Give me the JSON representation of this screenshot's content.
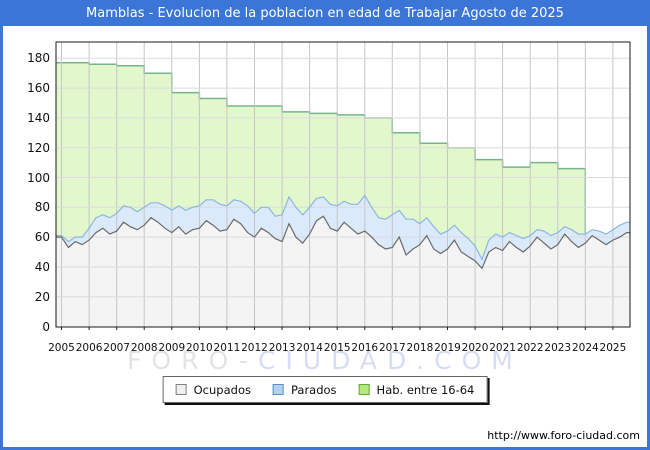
{
  "title": "Mamblas - Evolucion de la poblacion en edad de Trabajar Agosto de 2025",
  "footer_url": "http://www.foro-ciudad.com",
  "watermark": {
    "part1": "FORO-",
    "part2": "CIUDAD.COM"
  },
  "colors": {
    "frame": "#3b76d6",
    "title_bar": "#3b76d6",
    "title_text": "#ffffff",
    "plot_background": "#ffffff",
    "plot_border": "#1a1a1a",
    "grid_vertical": "#c5c5ca",
    "grid_horizontal": "#dbdbde",
    "ocupados_line": "#6a6a6a",
    "ocupados_fill": "#f4f4f4",
    "parados_line": "#8cb6e2",
    "parados_fill": "#daeafa",
    "hab_line": "#76b48a",
    "hab_fill": "#e2f8cc"
  },
  "legend": {
    "items": [
      {
        "label": "Ocupados",
        "fill": "#f0f0f0",
        "border": "#808080"
      },
      {
        "label": "Parados",
        "fill": "#b4d2ee",
        "border": "#5b8fc9"
      },
      {
        "label": "Hab. entre 16-64",
        "fill": "#b3e87d",
        "border": "#62a838"
      }
    ]
  },
  "chart_data": {
    "type": "area",
    "title": "Mamblas - Evolucion de la poblacion en edad de Trabajar Agosto de 2025",
    "xlabel": "",
    "ylabel": "",
    "x_tick_labels": [
      2005,
      2006,
      2007,
      2008,
      2009,
      2010,
      2011,
      2012,
      2013,
      2014,
      2015,
      2016,
      2017,
      2018,
      2019,
      2020,
      2021,
      2022,
      2023,
      2024,
      2025
    ],
    "yticks": [
      0,
      20,
      40,
      60,
      80,
      100,
      120,
      140,
      160,
      180
    ],
    "ylim": [
      0,
      191
    ],
    "grid": true,
    "legend_position": "bottom",
    "note": "Monthly series approximated at quarterly resolution; Parados is stacked above Ocupados; Hab. entre 16-64 is an annual step series. Big drop of Hab. entre 16-64 occurs at 2024.",
    "series": [
      {
        "name": "Ocupados",
        "render": "area",
        "start": 2005,
        "step": 0.25,
        "values": [
          60,
          53,
          57,
          55,
          58,
          63,
          66,
          62,
          64,
          70,
          67,
          65,
          68,
          73,
          70,
          66,
          63,
          67,
          62,
          65,
          66,
          71,
          68,
          64,
          65,
          72,
          69,
          63,
          60,
          66,
          63,
          59,
          57,
          69,
          60,
          56,
          62,
          71,
          74,
          66,
          64,
          70,
          66,
          62,
          64,
          60,
          55,
          52,
          53,
          60,
          48,
          52,
          55,
          61,
          52,
          49,
          52,
          58,
          50,
          47,
          44,
          39,
          50,
          53,
          51,
          57,
          53,
          50,
          54,
          60,
          56,
          52,
          55,
          62,
          57,
          53,
          56,
          61,
          58,
          55,
          58,
          60,
          63
        ]
      },
      {
        "name": "Parados",
        "render": "area",
        "stacked_on": "Ocupados",
        "start": 2005,
        "step": 0.25,
        "values": [
          1,
          4,
          3,
          5,
          8,
          10,
          9,
          11,
          12,
          11,
          13,
          12,
          12,
          10,
          13,
          15,
          15,
          14,
          16,
          15,
          15,
          14,
          17,
          18,
          16,
          13,
          15,
          18,
          16,
          14,
          17,
          15,
          18,
          18,
          20,
          19,
          18,
          15,
          13,
          16,
          17,
          14,
          16,
          20,
          24,
          20,
          18,
          20,
          22,
          18,
          24,
          20,
          14,
          12,
          15,
          13,
          12,
          10,
          13,
          12,
          10,
          6,
          8,
          9,
          9,
          6,
          8,
          9,
          7,
          5,
          8,
          9,
          8,
          5,
          8,
          9,
          6,
          4,
          6,
          7,
          7,
          8,
          7
        ]
      },
      {
        "name": "Hab. entre 16-64",
        "render": "step-area",
        "start": 2005,
        "step": 1,
        "values": [
          177,
          176,
          175,
          170,
          157,
          153,
          148,
          148,
          144,
          143,
          142,
          140,
          130,
          123,
          120,
          112,
          107,
          110,
          106,
          60,
          65
        ]
      }
    ]
  }
}
